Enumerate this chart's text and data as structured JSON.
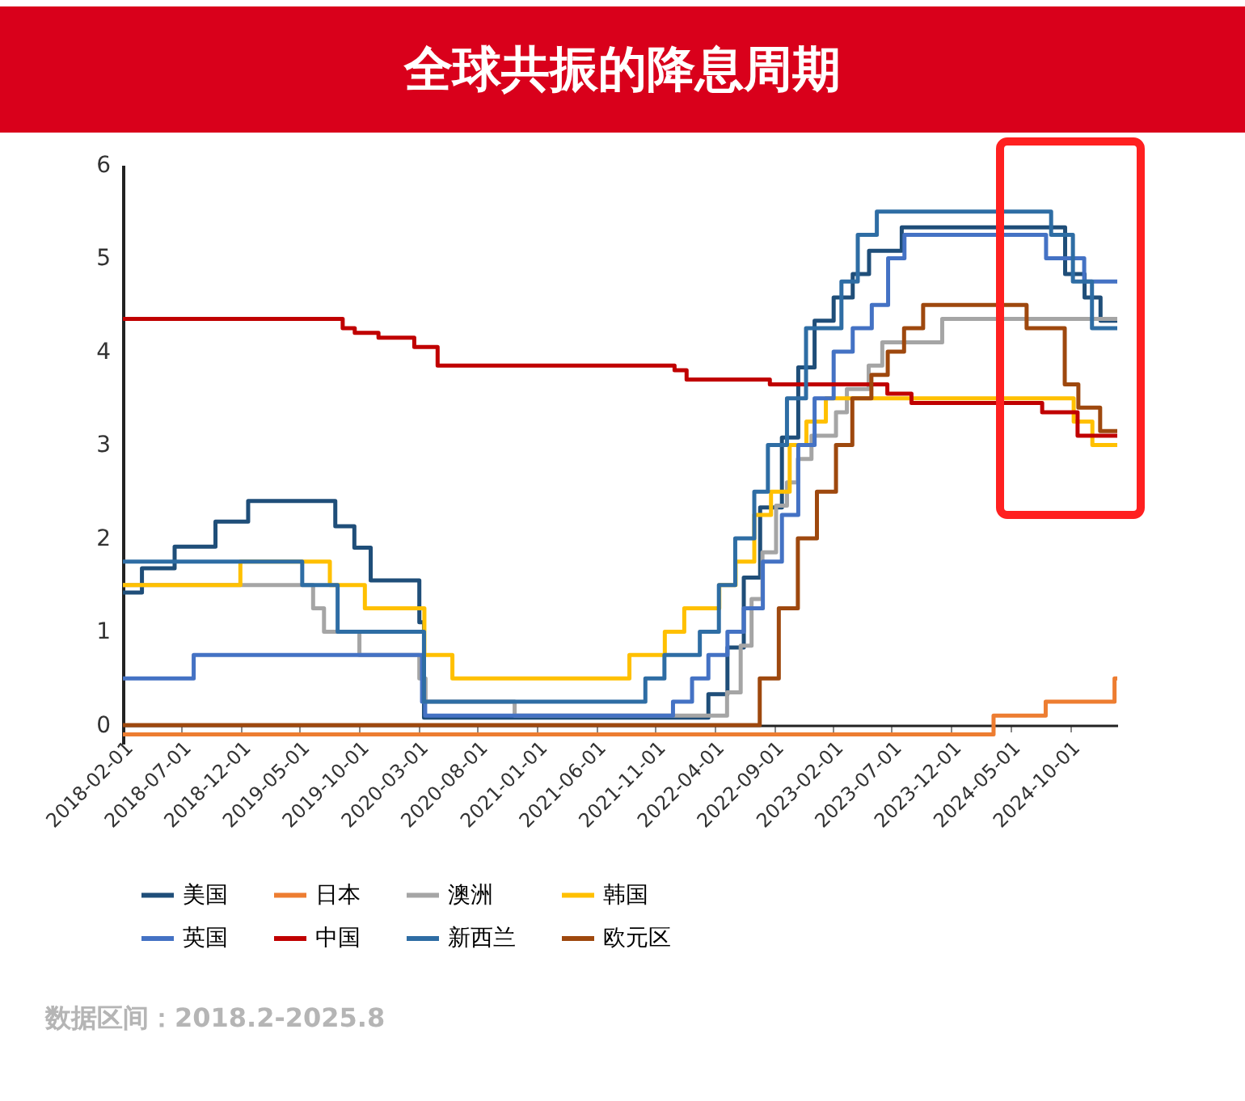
{
  "chart_data": {
    "type": "step",
    "title": "全球共振的降息周期",
    "annotations": [
      "数据区间：2018.2-2025.8"
    ],
    "xlim": [
      "2018-02-01",
      "2025-01-31"
    ],
    "xticks": [
      "2018-02-01",
      "2018-07-01",
      "2018-12-01",
      "2019-05-01",
      "2019-10-01",
      "2020-03-01",
      "2020-08-01",
      "2021-01-01",
      "2021-06-01",
      "2021-11-01",
      "2022-04-01",
      "2022-09-01",
      "2023-02-01",
      "2023-07-01",
      "2023-12-01",
      "2024-05-01",
      "2024-10-01"
    ],
    "ylim": [
      -0.2,
      6
    ],
    "yticks": [
      0,
      1,
      2,
      3,
      4,
      5,
      6
    ],
    "grid": false,
    "legend": "bottom",
    "series": [
      {
        "name": "美国",
        "color": "#1f4e79",
        "x": [
          "2018-02-01",
          "2018-03-22",
          "2018-06-14",
          "2018-09-27",
          "2018-12-20",
          "2019-08-01",
          "2019-09-19",
          "2019-10-31",
          "2020-03-04",
          "2020-03-16",
          "2022-03-17",
          "2022-05-05",
          "2022-06-16",
          "2022-07-28",
          "2022-09-22",
          "2022-11-03",
          "2022-12-15",
          "2023-02-02",
          "2023-03-23",
          "2023-05-04",
          "2023-07-27",
          "2024-09-19",
          "2024-11-08",
          "2024-12-19",
          "2025-01-31"
        ],
        "values": [
          1.42,
          1.68,
          1.91,
          2.18,
          2.4,
          2.13,
          1.9,
          1.55,
          1.1,
          0.08,
          0.33,
          0.83,
          1.58,
          2.33,
          3.08,
          3.83,
          4.33,
          4.58,
          4.83,
          5.08,
          5.33,
          4.83,
          4.58,
          4.33,
          4.33
        ]
      },
      {
        "name": "日本",
        "color": "#ed7d31",
        "x": [
          "2018-02-01",
          "2024-03-19",
          "2024-07-31",
          "2025-01-24",
          "2025-01-31"
        ],
        "values": [
          -0.1,
          0.1,
          0.25,
          0.5,
          0.5
        ]
      },
      {
        "name": "澳洲",
        "color": "#a5a5a5",
        "x": [
          "2018-02-01",
          "2019-06-05",
          "2019-07-03",
          "2019-10-02",
          "2020-03-04",
          "2020-03-20",
          "2020-11-04",
          "2022-05-04",
          "2022-06-08",
          "2022-07-06",
          "2022-08-03",
          "2022-09-07",
          "2022-10-05",
          "2022-11-02",
          "2022-12-07",
          "2023-02-08",
          "2023-03-08",
          "2023-05-03",
          "2023-06-07",
          "2023-11-08",
          "2025-01-31"
        ],
        "values": [
          1.5,
          1.25,
          1.0,
          0.75,
          0.5,
          0.25,
          0.1,
          0.35,
          0.85,
          1.35,
          1.85,
          2.35,
          2.6,
          2.85,
          3.1,
          3.35,
          3.6,
          3.85,
          4.1,
          4.35,
          4.35
        ]
      },
      {
        "name": "韩国",
        "color": "#ffc000",
        "x": [
          "2018-02-01",
          "2018-11-30",
          "2019-07-18",
          "2019-10-16",
          "2020-03-17",
          "2020-05-28",
          "2021-08-26",
          "2021-11-25",
          "2022-01-14",
          "2022-04-14",
          "2022-05-26",
          "2022-07-13",
          "2022-08-25",
          "2022-10-12",
          "2022-11-24",
          "2023-01-13",
          "2024-10-11",
          "2024-11-28",
          "2025-01-31"
        ],
        "values": [
          1.5,
          1.75,
          1.5,
          1.25,
          0.75,
          0.5,
          0.75,
          1.0,
          1.25,
          1.5,
          1.75,
          2.25,
          2.5,
          3.0,
          3.25,
          3.5,
          3.25,
          3.0,
          3.0
        ]
      },
      {
        "name": "英国",
        "color": "#4472c4",
        "x": [
          "2018-02-01",
          "2018-08-02",
          "2020-03-11",
          "2020-03-19",
          "2021-12-16",
          "2022-02-03",
          "2022-03-17",
          "2022-05-05",
          "2022-06-16",
          "2022-08-04",
          "2022-09-22",
          "2022-11-03",
          "2022-12-15",
          "2023-02-02",
          "2023-03-23",
          "2023-05-11",
          "2023-06-22",
          "2023-08-03",
          "2024-08-01",
          "2024-11-07",
          "2025-01-31"
        ],
        "values": [
          0.5,
          0.75,
          0.25,
          0.1,
          0.25,
          0.5,
          0.75,
          1.0,
          1.25,
          1.75,
          2.25,
          3.0,
          3.5,
          4.0,
          4.25,
          4.5,
          5.0,
          5.25,
          5.0,
          4.75,
          4.75
        ]
      },
      {
        "name": "中国",
        "color": "#c00000",
        "x": [
          "2018-02-01",
          "2019-08-20",
          "2019-09-20",
          "2019-11-20",
          "2020-02-20",
          "2020-04-20",
          "2021-12-20",
          "2022-01-20",
          "2022-08-22",
          "2023-06-20",
          "2023-08-21",
          "2024-07-22",
          "2024-10-21",
          "2025-01-31"
        ],
        "values": [
          4.35,
          4.25,
          4.2,
          4.15,
          4.05,
          3.85,
          3.8,
          3.7,
          3.65,
          3.55,
          3.45,
          3.35,
          3.1,
          3.1
        ]
      },
      {
        "name": "新西兰",
        "color": "#2e6da4",
        "x": [
          "2018-02-01",
          "2019-05-08",
          "2019-08-07",
          "2020-03-16",
          "2021-10-06",
          "2021-11-24",
          "2022-02-23",
          "2022-04-13",
          "2022-05-25",
          "2022-07-13",
          "2022-08-17",
          "2022-10-05",
          "2022-11-23",
          "2023-02-22",
          "2023-04-05",
          "2023-05-24",
          "2024-08-14",
          "2024-10-09",
          "2024-11-27",
          "2025-01-31"
        ],
        "values": [
          1.75,
          1.5,
          1.0,
          0.25,
          0.5,
          0.75,
          1.0,
          1.5,
          2.0,
          2.5,
          3.0,
          3.5,
          4.25,
          4.75,
          5.25,
          5.5,
          5.25,
          4.75,
          4.25,
          4.25
        ]
      },
      {
        "name": "欧元区",
        "color": "#9e480e",
        "x": [
          "2018-02-01",
          "2022-07-27",
          "2022-09-14",
          "2022-11-02",
          "2022-12-21",
          "2023-02-08",
          "2023-03-22",
          "2023-05-10",
          "2023-06-21",
          "2023-08-02",
          "2023-09-20",
          "2024-06-12",
          "2024-09-18",
          "2024-10-23",
          "2024-12-18",
          "2025-01-31"
        ],
        "values": [
          0,
          0.5,
          1.25,
          2.0,
          2.5,
          3.0,
          3.5,
          3.75,
          4.0,
          4.25,
          4.5,
          4.25,
          3.65,
          3.4,
          3.15,
          3.15
        ]
      }
    ]
  }
}
